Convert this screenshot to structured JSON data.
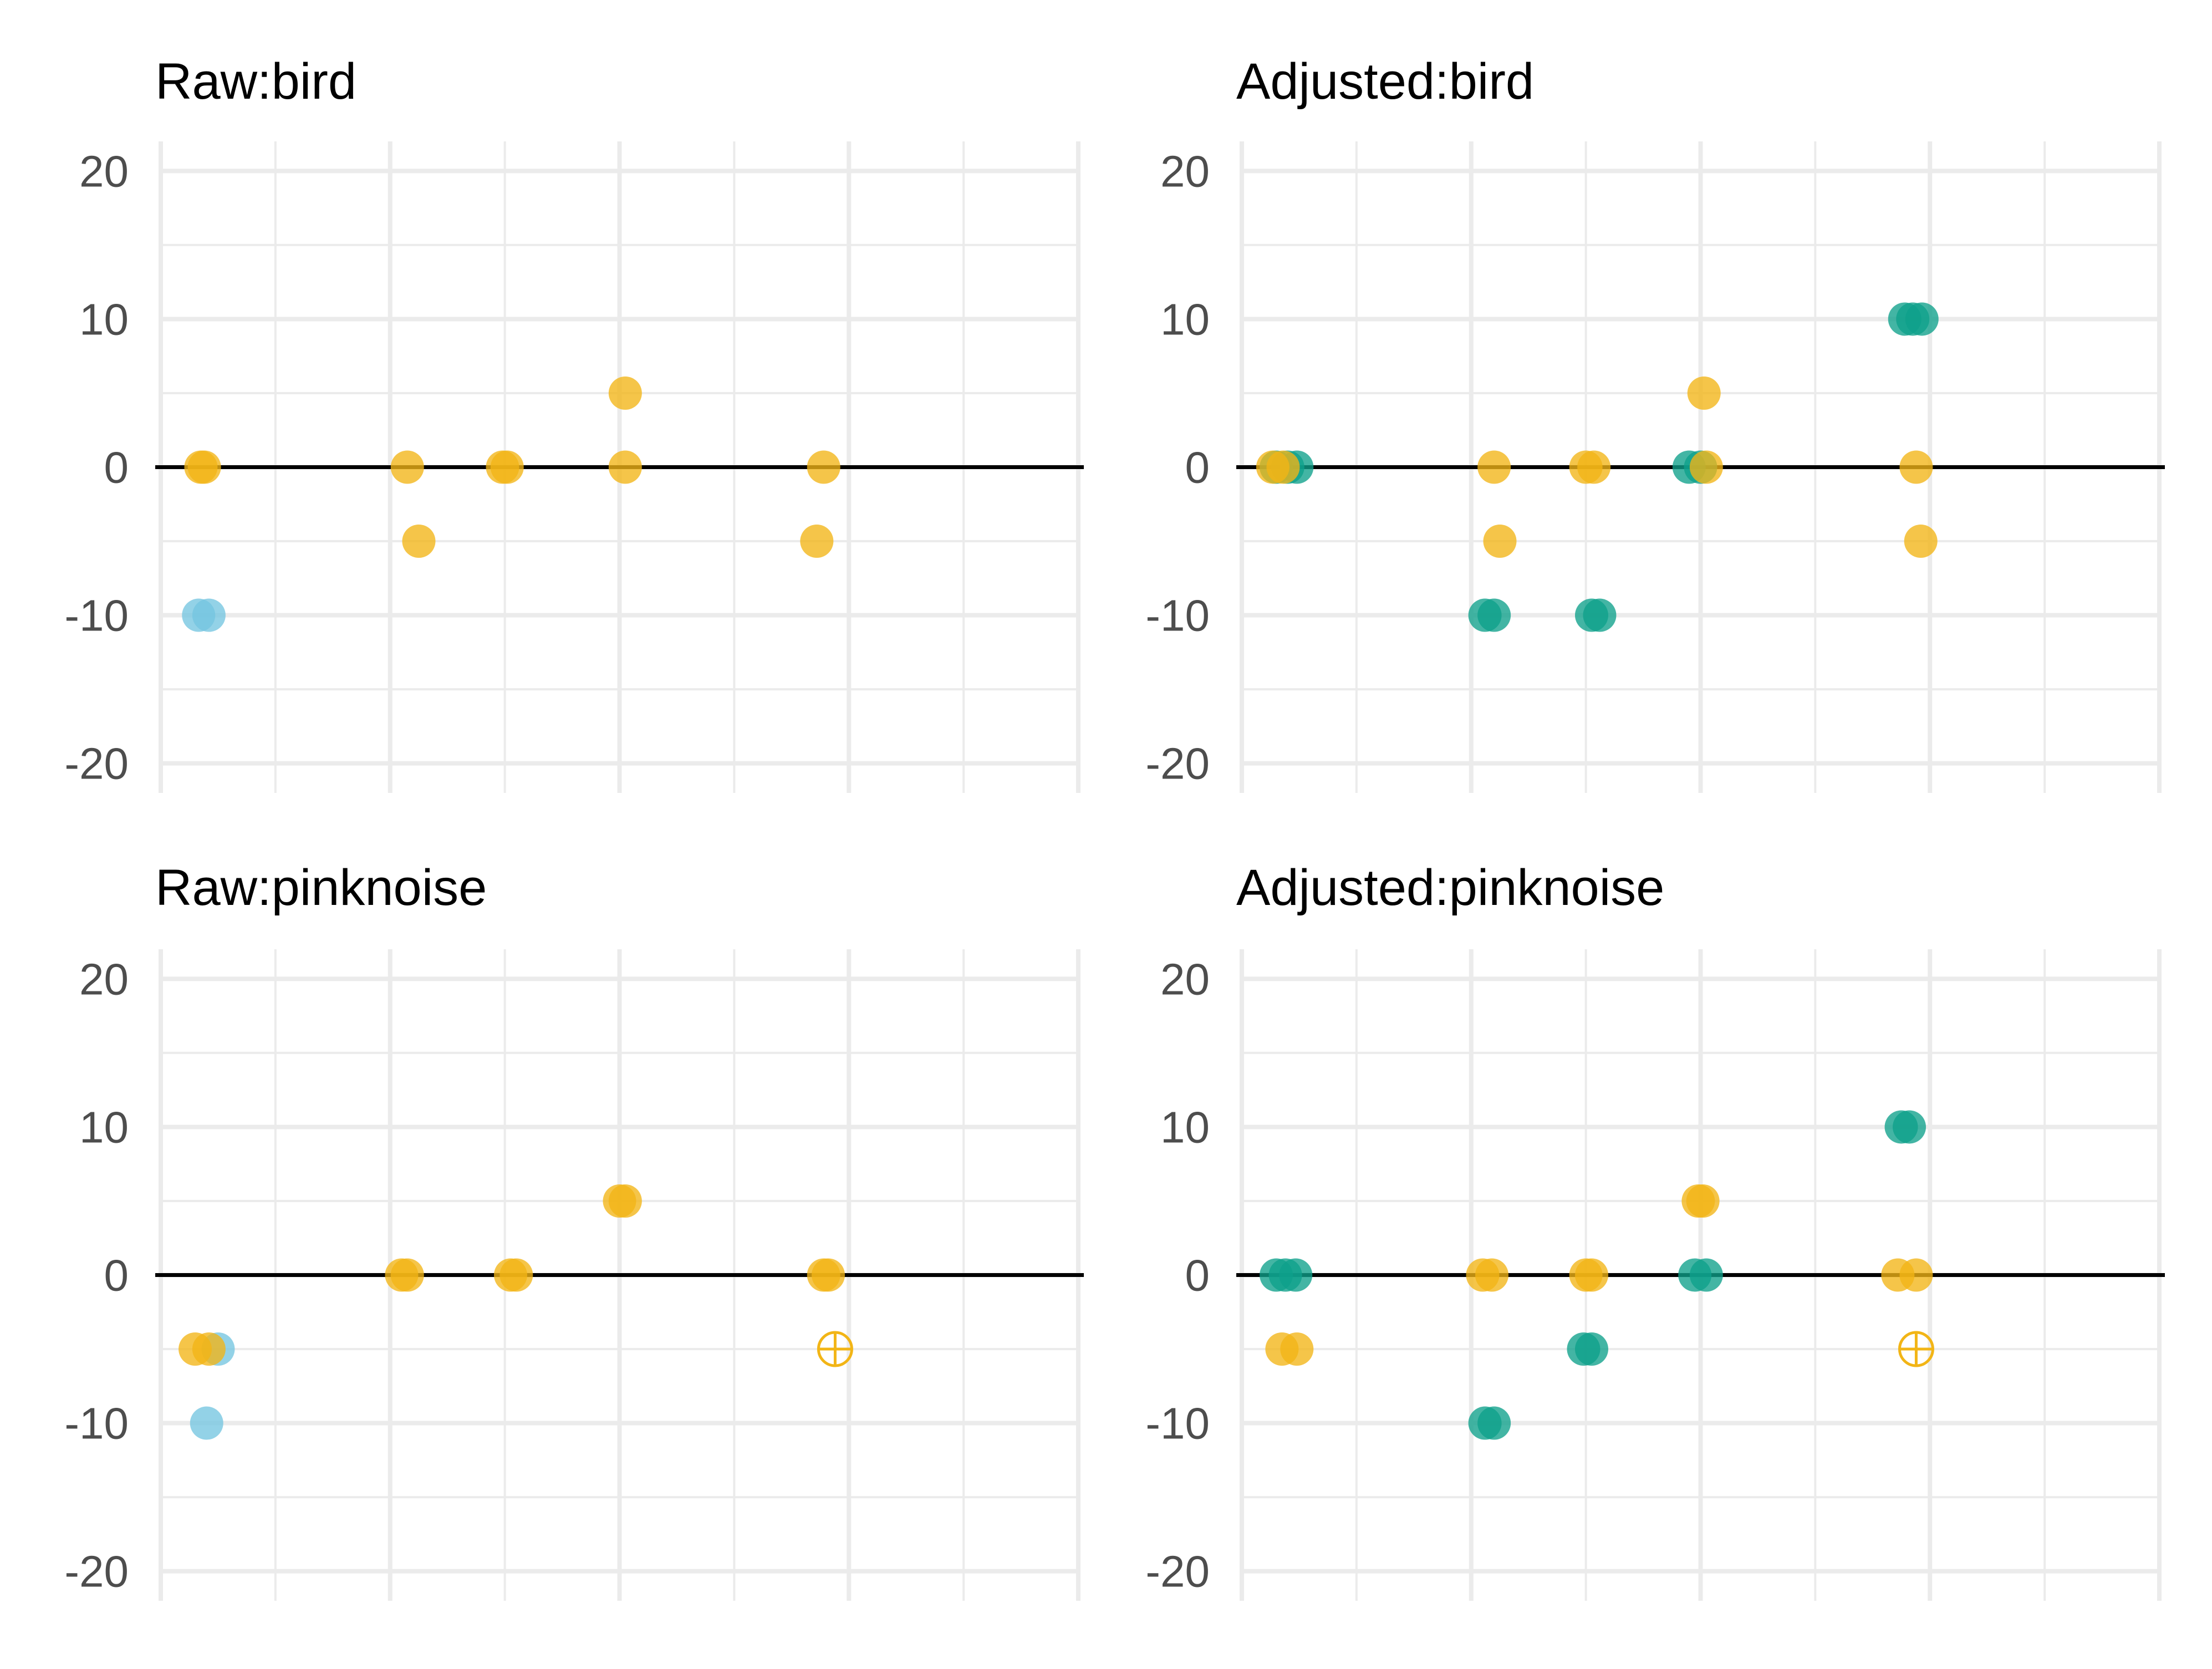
{
  "chart_data": [
    {
      "type": "scatter",
      "title": "Raw:bird",
      "ylim": [
        -22,
        22
      ],
      "xlim": [
        0,
        8
      ],
      "y_ticks": [
        -20,
        -10,
        0,
        10,
        20
      ],
      "y_tick_labels": [
        "-20",
        "-10",
        "0",
        "10",
        "20"
      ],
      "x_tick_labels": [],
      "reference_line_y": 0,
      "grid": true,
      "series": [
        {
          "color": "#74C5E0",
          "points": [
            {
              "x": 0.33,
              "y": -10
            },
            {
              "x": 0.42,
              "y": -10
            }
          ]
        },
        {
          "color": "#F2B516",
          "points": [
            {
              "x": 0.35,
              "y": 0
            },
            {
              "x": 0.38,
              "y": 0
            },
            {
              "x": 2.15,
              "y": 0
            },
            {
              "x": 2.25,
              "y": -5
            },
            {
              "x": 2.98,
              "y": 0
            },
            {
              "x": 3.02,
              "y": 0
            },
            {
              "x": 4.05,
              "y": 5
            },
            {
              "x": 4.05,
              "y": 0
            },
            {
              "x": 5.78,
              "y": 0
            },
            {
              "x": 5.72,
              "y": -5
            }
          ]
        }
      ]
    },
    {
      "type": "scatter",
      "title": "Adjusted:bird",
      "ylim": [
        -22,
        22
      ],
      "xlim": [
        0,
        8
      ],
      "y_ticks": [
        -20,
        -10,
        0,
        10,
        20
      ],
      "y_tick_labels": [
        "-20",
        "-10",
        "0",
        "10",
        "20"
      ],
      "x_tick_labels": [],
      "reference_line_y": 0,
      "grid": true,
      "series": [
        {
          "color": "#0EA08A",
          "points": [
            {
              "x": 0.3,
              "y": 0
            },
            {
              "x": 0.4,
              "y": 0
            },
            {
              "x": 0.48,
              "y": 0
            },
            {
              "x": 2.12,
              "y": -10
            },
            {
              "x": 2.2,
              "y": -10
            },
            {
              "x": 3.05,
              "y": -10
            },
            {
              "x": 3.12,
              "y": -10
            },
            {
              "x": 3.9,
              "y": 0
            },
            {
              "x": 4.0,
              "y": 0
            },
            {
              "x": 5.78,
              "y": 10
            },
            {
              "x": 5.85,
              "y": 10
            },
            {
              "x": 5.93,
              "y": 10
            }
          ]
        },
        {
          "color": "#F2B516",
          "points": [
            {
              "x": 0.27,
              "y": 0
            },
            {
              "x": 0.36,
              "y": 0
            },
            {
              "x": 2.2,
              "y": 0
            },
            {
              "x": 2.25,
              "y": -5
            },
            {
              "x": 3.0,
              "y": 0
            },
            {
              "x": 3.07,
              "y": 0
            },
            {
              "x": 4.03,
              "y": 5
            },
            {
              "x": 4.05,
              "y": 0
            },
            {
              "x": 5.88,
              "y": 0
            },
            {
              "x": 5.92,
              "y": -5
            }
          ]
        }
      ]
    },
    {
      "type": "scatter",
      "title": "Raw:pinknoise",
      "ylim": [
        -22,
        22
      ],
      "xlim": [
        0,
        8
      ],
      "y_ticks": [
        -20,
        -10,
        0,
        10,
        20
      ],
      "y_tick_labels": [
        "-20",
        "-10",
        "0",
        "10",
        "20"
      ],
      "x_tick_labels": [],
      "reference_line_y": 0,
      "grid": true,
      "series": [
        {
          "color": "#74C5E0",
          "points": [
            {
              "x": 0.5,
              "y": -5
            },
            {
              "x": 0.4,
              "y": -10
            }
          ]
        },
        {
          "color": "#F2B516",
          "points": [
            {
              "x": 0.3,
              "y": -5
            },
            {
              "x": 0.42,
              "y": -5
            },
            {
              "x": 2.1,
              "y": 0
            },
            {
              "x": 2.15,
              "y": 0
            },
            {
              "x": 3.05,
              "y": 0
            },
            {
              "x": 3.1,
              "y": 0
            },
            {
              "x": 4.0,
              "y": 5
            },
            {
              "x": 4.05,
              "y": 5
            },
            {
              "x": 5.78,
              "y": 0
            },
            {
              "x": 5.82,
              "y": 0
            }
          ]
        },
        {
          "color": "#F2B516",
          "style": "crossed-circle",
          "points": [
            {
              "x": 5.88,
              "y": -5
            }
          ]
        }
      ]
    },
    {
      "type": "scatter",
      "title": "Adjusted:pinknoise",
      "ylim": [
        -22,
        22
      ],
      "xlim": [
        0,
        8
      ],
      "y_ticks": [
        -20,
        -10,
        0,
        10,
        20
      ],
      "y_tick_labels": [
        "-20",
        "-10",
        "0",
        "10",
        "20"
      ],
      "x_tick_labels": [],
      "reference_line_y": 0,
      "grid": true,
      "series": [
        {
          "color": "#0EA08A",
          "points": [
            {
              "x": 0.3,
              "y": 0
            },
            {
              "x": 0.38,
              "y": 0
            },
            {
              "x": 0.47,
              "y": 0
            },
            {
              "x": 2.12,
              "y": -10
            },
            {
              "x": 2.2,
              "y": -10
            },
            {
              "x": 2.98,
              "y": -5
            },
            {
              "x": 3.05,
              "y": -5
            },
            {
              "x": 3.95,
              "y": 0
            },
            {
              "x": 4.05,
              "y": 0
            },
            {
              "x": 5.75,
              "y": 10
            },
            {
              "x": 5.82,
              "y": 10
            }
          ]
        },
        {
          "color": "#F2B516",
          "points": [
            {
              "x": 0.35,
              "y": -5
            },
            {
              "x": 0.48,
              "y": -5
            },
            {
              "x": 2.1,
              "y": 0
            },
            {
              "x": 2.18,
              "y": 0
            },
            {
              "x": 3.0,
              "y": 0
            },
            {
              "x": 3.05,
              "y": 0
            },
            {
              "x": 3.98,
              "y": 5
            },
            {
              "x": 4.02,
              "y": 5
            },
            {
              "x": 5.72,
              "y": 0
            },
            {
              "x": 5.88,
              "y": 0
            }
          ]
        },
        {
          "color": "#F2B516",
          "style": "crossed-circle",
          "points": [
            {
              "x": 5.88,
              "y": -5
            }
          ]
        }
      ]
    }
  ]
}
